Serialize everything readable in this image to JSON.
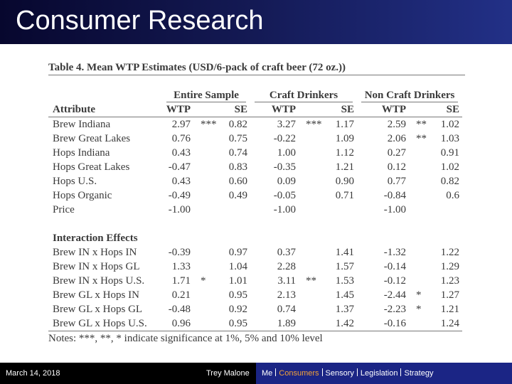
{
  "header": {
    "title": "Consumer Research"
  },
  "table": {
    "title": "Table 4. Mean WTP Estimates (USD/6-pack of craft beer (72 oz.))",
    "groups": [
      "Entire Sample",
      "Craft Drinkers",
      "Non Craft Drinkers"
    ],
    "columns": [
      "Attribute",
      "WTP",
      null,
      "SE",
      "WTP",
      null,
      "SE",
      "WTP",
      null,
      "SE"
    ],
    "rows": [
      [
        "Brew Indiana",
        "2.97",
        "***",
        "0.82",
        "3.27",
        "***",
        "1.17",
        "2.59",
        "**",
        "1.02"
      ],
      [
        "Brew Great Lakes",
        "0.76",
        null,
        "0.75",
        "-0.22",
        null,
        "1.09",
        "2.06",
        "**",
        "1.03"
      ],
      [
        "Hops Indiana",
        "0.43",
        null,
        "0.74",
        "1.00",
        null,
        "1.12",
        "0.27",
        null,
        "0.91"
      ],
      [
        "Hops Great Lakes",
        "-0.47",
        null,
        "0.83",
        "-0.35",
        null,
        "1.21",
        "0.12",
        null,
        "1.02"
      ],
      [
        "Hops U.S.",
        "0.43",
        null,
        "0.60",
        "0.09",
        null,
        "0.90",
        "0.77",
        null,
        "0.82"
      ],
      [
        "Hops Organic",
        "-0.49",
        null,
        "0.49",
        "-0.05",
        null,
        "0.71",
        "-0.84",
        null,
        "0.6"
      ],
      [
        "Price",
        "-1.00",
        null,
        null,
        "-1.00",
        null,
        null,
        "-1.00",
        null,
        null
      ]
    ],
    "interaction_title": "Interaction Effects",
    "interaction_rows": [
      [
        "Brew IN x Hops IN",
        "-0.39",
        null,
        "0.97",
        "0.37",
        null,
        "1.41",
        "-1.32",
        null,
        "1.22"
      ],
      [
        "Brew IN x Hops GL",
        "1.33",
        null,
        "1.04",
        "2.28",
        null,
        "1.57",
        "-0.14",
        null,
        "1.29"
      ],
      [
        "Brew IN x Hops U.S.",
        "1.71",
        "*",
        "1.01",
        "3.11",
        "**",
        "1.53",
        "-0.12",
        null,
        "1.23"
      ],
      [
        "Brew GL x Hops IN",
        "0.21",
        null,
        "0.95",
        "2.13",
        null,
        "1.45",
        "-2.44",
        "*",
        "1.27"
      ],
      [
        "Brew GL x Hops GL",
        "-0.48",
        null,
        "0.92",
        "0.74",
        null,
        "1.37",
        "-2.23",
        "*",
        "1.21"
      ],
      [
        "Brew GL x Hops U.S.",
        "0.96",
        null,
        "0.95",
        "1.89",
        null,
        "1.42",
        "-0.16",
        null,
        "1.24"
      ]
    ],
    "notes": "Notes: ***, **, * indicate significance at 1%, 5% and 10% level"
  },
  "footer": {
    "date": "March 14, 2018",
    "presenter": "Trey Malone",
    "nav": [
      "Me",
      "Consumers",
      "Sensory",
      "Legislation",
      "Strategy"
    ],
    "active": 1
  }
}
